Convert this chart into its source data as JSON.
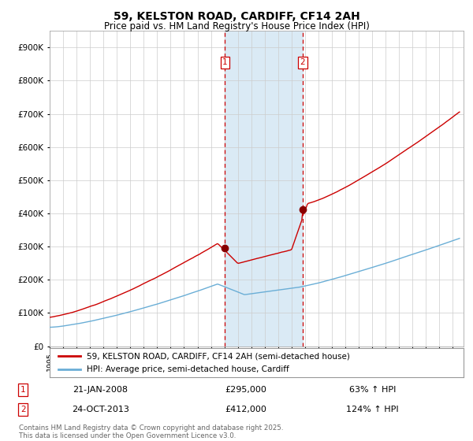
{
  "title": "59, KELSTON ROAD, CARDIFF, CF14 2AH",
  "subtitle": "Price paid vs. HM Land Registry's House Price Index (HPI)",
  "legend_line1": "59, KELSTON ROAD, CARDIFF, CF14 2AH (semi-detached house)",
  "legend_line2": "HPI: Average price, semi-detached house, Cardiff",
  "transaction1_date": "21-JAN-2008",
  "transaction1_price": 295000,
  "transaction1_hpi": "63% ↑ HPI",
  "transaction2_date": "24-OCT-2013",
  "transaction2_price": 412000,
  "transaction2_hpi": "124% ↑ HPI",
  "footer": "Contains HM Land Registry data © Crown copyright and database right 2025.\nThis data is licensed under the Open Government Licence v3.0.",
  "hpi_color": "#6aaed6",
  "price_color": "#cc0000",
  "marker_color": "#880000",
  "shading_color": "#daeaf5",
  "dashed_color": "#cc0000",
  "background_color": "#ffffff",
  "grid_color": "#cccccc",
  "ylim": [
    0,
    950000
  ],
  "ytick_step": 100000,
  "x_start_year": 1995,
  "x_end_year": 2025,
  "transaction1_year": 2008.05,
  "transaction2_year": 2013.82
}
